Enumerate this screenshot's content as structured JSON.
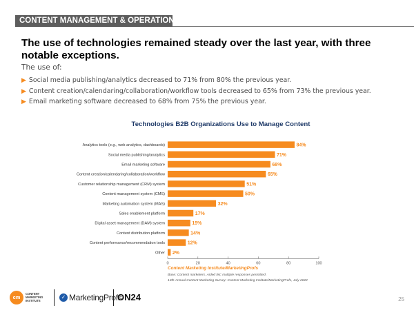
{
  "header": {
    "section_tag": "CONTENT MANAGEMENT & OPERATIONS",
    "headline": "The use of technologies remained steady over the last year, with three notable exceptions."
  },
  "intro": {
    "lead": "The use of:",
    "bullets": [
      "Social media publishing/analytics decreased to 71% from 80% the previous year.",
      "Content creation/calendaring/collaboration/workflow tools decreased to 65% from 73% the previous year.",
      "Email marketing software decreased to 68% from 75% the previous year."
    ]
  },
  "chart_data": {
    "type": "bar",
    "orientation": "horizontal",
    "title": "Technologies B2B Organizations Use to Manage Content",
    "categories": [
      "Analytics tools (e.g., web analytics, dashboards)",
      "Social media publishing/analytics",
      "Email marketing software",
      "Content creation/calendaring/collaboration/workflow",
      "Customer relationship management (CRM) system",
      "Content management system (CMS)",
      "Marketing automation system (MAS)",
      "Sales enablement platform",
      "Digital asset management (DAM) system",
      "Content distribution platform",
      "Content performance/recommendation tools",
      "Other"
    ],
    "values": [
      84,
      71,
      68,
      65,
      51,
      50,
      32,
      17,
      15,
      14,
      12,
      2
    ],
    "value_labels": [
      "84%",
      "71%",
      "68%",
      "65%",
      "51%",
      "50%",
      "32%",
      "17%",
      "15%",
      "14%",
      "12%",
      "2%"
    ],
    "xlim": [
      0,
      100
    ],
    "xticks": [
      0,
      20,
      40,
      60,
      80,
      100
    ],
    "xtick_labels": [
      "0",
      "20",
      "40",
      "60",
      "80",
      "100"
    ],
    "grid": false,
    "bar_color": "#f68b1f",
    "label_color": "#f68b1f",
    "title_color": "#1f3a68"
  },
  "footnotes": {
    "source": "Content Marketing Institute/MarketingProfs",
    "base": "Base: Content marketers. Aided list; multiple responses permitted.",
    "survey": "13th Annual Content Marketing Survey: Content Marketing Institute/MarketingProfs, July 2022"
  },
  "footer": {
    "cmi_mark": "cm",
    "cmi_name": "CONTENT MARKETING INSTITUTE",
    "marketingprofs": "MarketingProfs",
    "on24": "ON24",
    "page_number": "25"
  },
  "colors": {
    "accent": "#f68b1f",
    "section_tag_bg": "#5d5d5d",
    "chart_title": "#1f3a68"
  }
}
